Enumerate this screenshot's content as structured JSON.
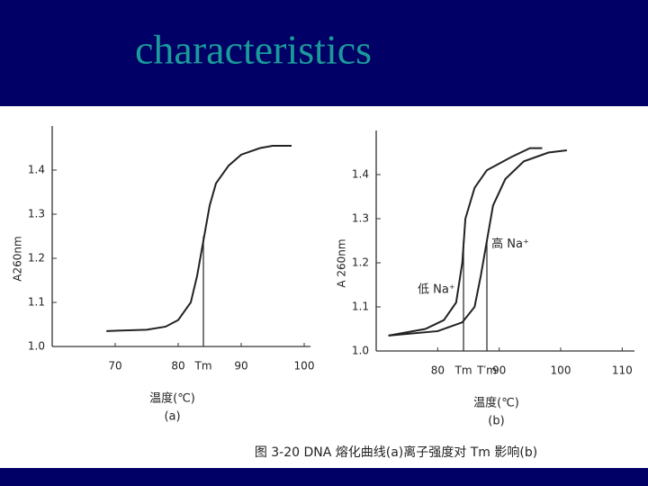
{
  "title": "characteristics",
  "caption": "图 3-20  DNA 熔化曲线(a)离子强度对 Tm 影响(b)",
  "chart_data": [
    {
      "type": "line",
      "x_label": "温度(℃)",
      "y_label": "A260nm",
      "subtitle": "(a)",
      "xlim": [
        60,
        101
      ],
      "ylim": [
        1.0,
        1.5
      ],
      "xticks": [
        70,
        80,
        {
          "value": 84,
          "label": "Tm"
        },
        90,
        100
      ],
      "yticks": [
        {
          "value": 1.0,
          "label": "1.0"
        },
        1.1,
        1.2,
        1.3,
        1.4
      ],
      "markers_x": [
        2
      ],
      "series": [
        {
          "color": "#222222",
          "x": [
            68.6,
            75,
            78,
            80,
            82,
            83,
            84,
            85,
            86,
            88,
            90,
            93,
            95,
            98
          ],
          "values": [
            1.035,
            1.038,
            1.045,
            1.06,
            1.1,
            1.16,
            1.24,
            1.32,
            1.37,
            1.41,
            1.435,
            1.45,
            1.455,
            1.455
          ]
        }
      ]
    },
    {
      "type": "line",
      "x_label": "温度(℃)",
      "y_label": "A 260nm",
      "subtitle": "(b)",
      "xlim": [
        70,
        112
      ],
      "ylim": [
        1.0,
        1.5
      ],
      "xticks": [
        80,
        {
          "value": 84.2,
          "label": "Tm"
        },
        {
          "value": 88,
          "label": "T′m"
        },
        90,
        100,
        110
      ],
      "yticks": [
        {
          "value": 1.0,
          "label": "1.0"
        },
        1.1,
        1.2,
        1.3,
        1.4
      ],
      "markers_x": [
        1,
        2
      ],
      "series": [
        {
          "name": "低 Na⁺",
          "color": "#222222",
          "x": [
            72,
            78,
            81,
            83,
            84,
            84.5,
            86,
            88,
            92,
            95,
            97
          ],
          "values": [
            1.035,
            1.05,
            1.07,
            1.11,
            1.2,
            1.3,
            1.37,
            1.41,
            1.44,
            1.46,
            1.46
          ]
        },
        {
          "name": "高 Na⁺",
          "color": "#222222",
          "x": [
            72,
            80,
            84,
            86,
            87,
            88,
            89,
            91,
            94,
            98,
            101
          ],
          "values": [
            1.035,
            1.045,
            1.065,
            1.1,
            1.17,
            1.25,
            1.33,
            1.39,
            1.43,
            1.45,
            1.455
          ]
        }
      ]
    }
  ]
}
